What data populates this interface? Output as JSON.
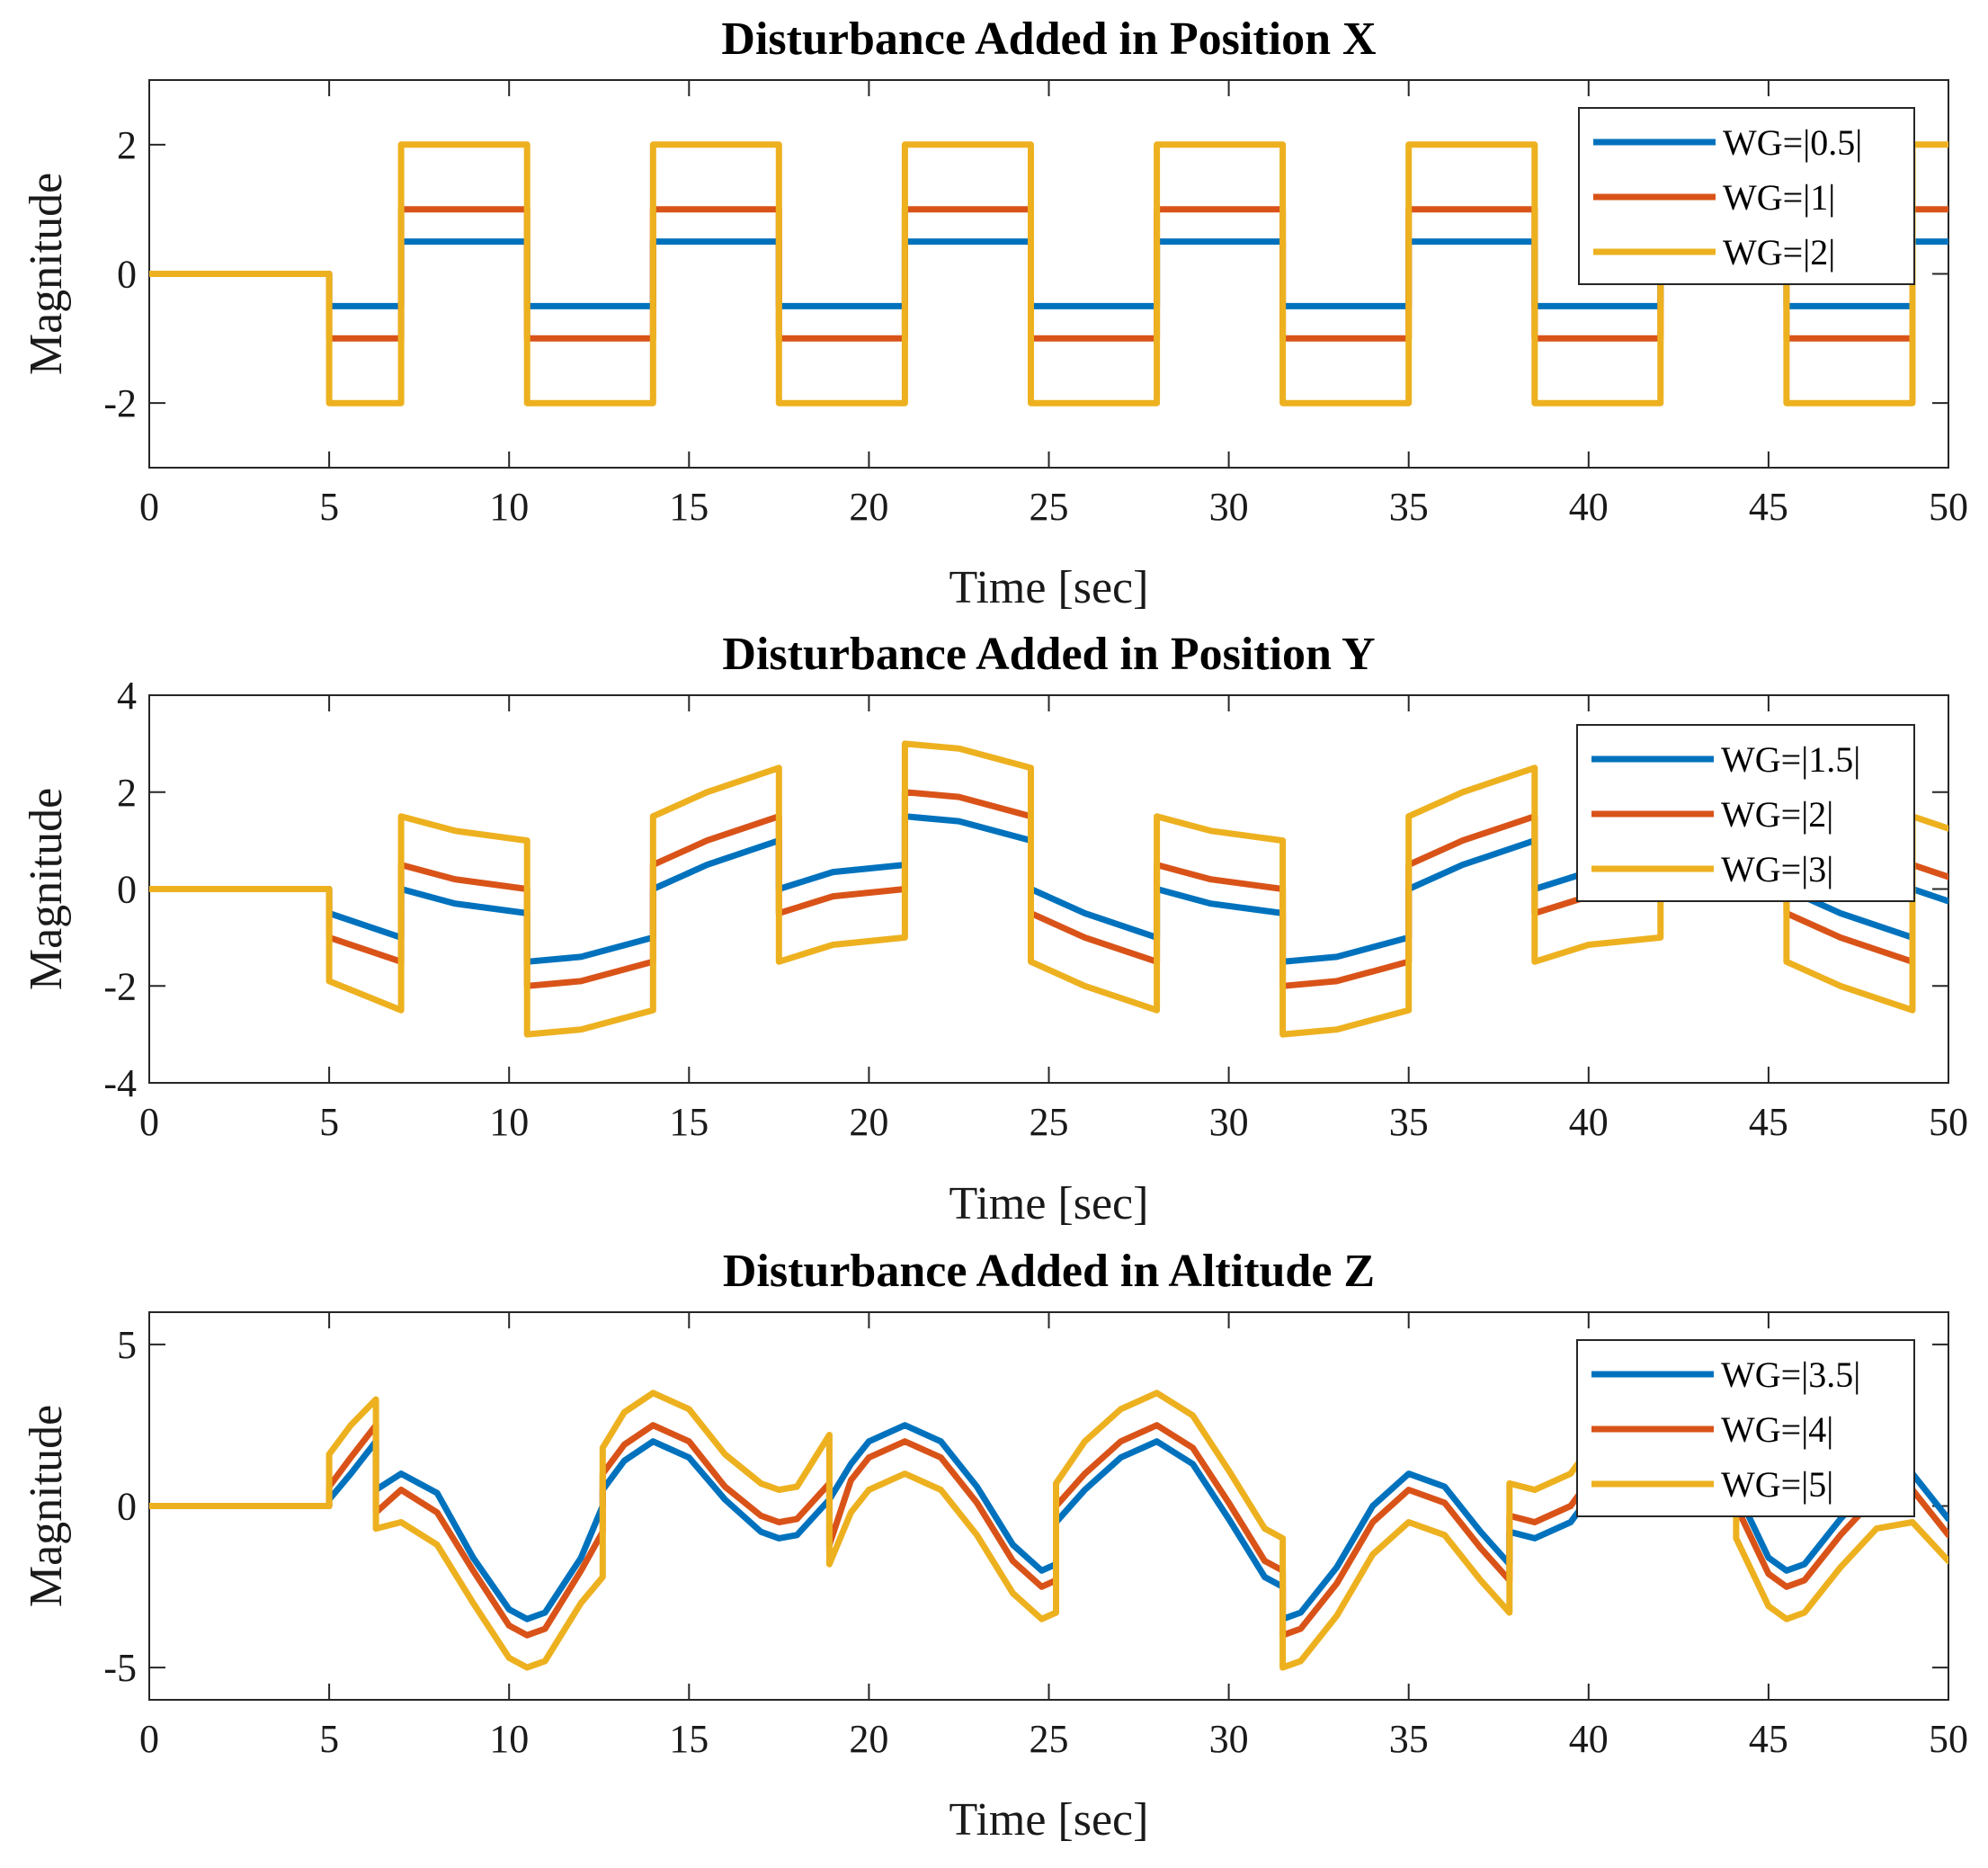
{
  "colors": {
    "s1": "#0072BD",
    "s2": "#D95319",
    "s3": "#EDB120"
  },
  "chart_data": [
    {
      "type": "line",
      "title": "Disturbance Added in Position X",
      "xlabel": "Time [sec]",
      "ylabel": "Magnitude",
      "xlim": [
        0,
        50
      ],
      "ylim": [
        -3,
        3
      ],
      "xticks": [
        0,
        5,
        10,
        15,
        20,
        25,
        30,
        35,
        40,
        45,
        50
      ],
      "xtick_labels": [
        "0",
        "5",
        "10",
        "15",
        "20",
        "25",
        "30",
        "35",
        "40",
        "45",
        "50"
      ],
      "yticks": [
        -2,
        0,
        2
      ],
      "ytick_labels": [
        "-2",
        "0",
        "2"
      ],
      "legend_position": "top-right",
      "series": [
        {
          "name": "WG=|0.5|",
          "color": "#0072BD",
          "x": [
            0,
            5,
            5,
            7,
            7,
            10.5,
            10.5,
            14,
            14,
            17.5,
            17.5,
            21,
            21,
            24.5,
            24.5,
            28,
            28,
            31.5,
            31.5,
            35,
            35,
            38.5,
            38.5,
            42,
            42,
            45.5,
            45.5,
            49,
            49,
            50
          ],
          "y": [
            0,
            0,
            -0.5,
            -0.5,
            0.5,
            0.5,
            -0.5,
            -0.5,
            0.5,
            0.5,
            -0.5,
            -0.5,
            0.5,
            0.5,
            -0.5,
            -0.5,
            0.5,
            0.5,
            -0.5,
            -0.5,
            0.5,
            0.5,
            -0.5,
            -0.5,
            0.5,
            0.5,
            -0.5,
            -0.5,
            0.5,
            0.5
          ]
        },
        {
          "name": "WG=|1|",
          "color": "#D95319",
          "x": [
            0,
            5,
            5,
            7,
            7,
            10.5,
            10.5,
            14,
            14,
            17.5,
            17.5,
            21,
            21,
            24.5,
            24.5,
            28,
            28,
            31.5,
            31.5,
            35,
            35,
            38.5,
            38.5,
            42,
            42,
            45.5,
            45.5,
            49,
            49,
            50
          ],
          "y": [
            0,
            0,
            -1,
            -1,
            1,
            1,
            -1,
            -1,
            1,
            1,
            -1,
            -1,
            1,
            1,
            -1,
            -1,
            1,
            1,
            -1,
            -1,
            1,
            1,
            -1,
            -1,
            1,
            1,
            -1,
            -1,
            1,
            1
          ]
        },
        {
          "name": "WG=|2|",
          "color": "#EDB120",
          "x": [
            0,
            5,
            5,
            7,
            7,
            10.5,
            10.5,
            14,
            14,
            17.5,
            17.5,
            21,
            21,
            24.5,
            24.5,
            28,
            28,
            31.5,
            31.5,
            35,
            35,
            38.5,
            38.5,
            42,
            42,
            45.5,
            45.5,
            49,
            49,
            50
          ],
          "y": [
            0,
            0,
            -2,
            -2,
            2,
            2,
            -2,
            -2,
            2,
            2,
            -2,
            -2,
            2,
            2,
            -2,
            -2,
            2,
            2,
            -2,
            -2,
            2,
            2,
            -2,
            -2,
            2,
            2,
            -2,
            -2,
            2,
            2
          ]
        }
      ]
    },
    {
      "type": "line",
      "title": "Disturbance Added in Position Y",
      "xlabel": "Time [sec]",
      "ylabel": "Magnitude",
      "xlim": [
        0,
        50
      ],
      "ylim": [
        -4,
        4
      ],
      "xticks": [
        0,
        5,
        10,
        15,
        20,
        25,
        30,
        35,
        40,
        45,
        50
      ],
      "xtick_labels": [
        "0",
        "5",
        "10",
        "15",
        "20",
        "25",
        "30",
        "35",
        "40",
        "45",
        "50"
      ],
      "yticks": [
        -4,
        -2,
        0,
        2,
        4
      ],
      "ytick_labels": [
        "-4",
        "-2",
        "0",
        "2",
        "4"
      ],
      "legend_position": "top-right",
      "series": [
        {
          "name": "WG=|1.5|",
          "color": "#0072BD",
          "x": [
            0,
            5,
            5,
            6,
            7,
            7,
            8.5,
            10.5,
            10.5,
            12,
            14,
            14,
            15.5,
            17.5,
            17.5,
            19,
            21,
            21,
            22.5,
            24.5,
            24.5,
            26,
            28,
            28,
            29.5,
            31.5,
            31.5,
            33,
            35,
            35,
            36.5,
            38.5,
            38.5,
            40,
            42,
            42,
            43.5,
            45.5,
            45.5,
            47,
            49,
            49,
            50
          ],
          "y": [
            0,
            0,
            -0.5,
            -0.75,
            -1.0,
            0.0,
            -0.3,
            -0.5,
            -1.5,
            -1.4,
            -1.0,
            0.0,
            0.5,
            1.0,
            0.0,
            0.35,
            0.5,
            1.5,
            1.4,
            1.0,
            0.0,
            -0.5,
            -1.0,
            0.0,
            -0.3,
            -0.5,
            -1.5,
            -1.4,
            -1.0,
            0.0,
            0.5,
            1.0,
            0.0,
            0.35,
            0.5,
            1.5,
            1.4,
            1.0,
            0.0,
            -0.5,
            -1.0,
            0.0,
            -0.25
          ]
        },
        {
          "name": "WG=|2|",
          "color": "#D95319",
          "x": [
            0,
            5,
            5,
            6,
            7,
            7,
            8.5,
            10.5,
            10.5,
            12,
            14,
            14,
            15.5,
            17.5,
            17.5,
            19,
            21,
            21,
            22.5,
            24.5,
            24.5,
            26,
            28,
            28,
            29.5,
            31.5,
            31.5,
            33,
            35,
            35,
            36.5,
            38.5,
            38.5,
            40,
            42,
            42,
            43.5,
            45.5,
            45.5,
            47,
            49,
            49,
            50
          ],
          "y": [
            0,
            0,
            -1.0,
            -1.25,
            -1.5,
            0.5,
            0.2,
            0.0,
            -2.0,
            -1.9,
            -1.5,
            0.5,
            1.0,
            1.5,
            -0.5,
            -0.15,
            0.0,
            2.0,
            1.9,
            1.5,
            -0.5,
            -1.0,
            -1.5,
            0.5,
            0.2,
            0.0,
            -2.0,
            -1.9,
            -1.5,
            0.5,
            1.0,
            1.5,
            -0.5,
            -0.15,
            0.0,
            2.0,
            1.9,
            1.5,
            -0.5,
            -1.0,
            -1.5,
            0.5,
            0.25
          ]
        },
        {
          "name": "WG=|3|",
          "color": "#EDB120",
          "x": [
            0,
            5,
            5,
            6,
            7,
            7,
            8.5,
            10.5,
            10.5,
            12,
            14,
            14,
            15.5,
            17.5,
            17.5,
            19,
            21,
            21,
            22.5,
            24.5,
            24.5,
            26,
            28,
            28,
            29.5,
            31.5,
            31.5,
            33,
            35,
            35,
            36.5,
            38.5,
            38.5,
            40,
            42,
            42,
            43.5,
            45.5,
            45.5,
            47,
            49,
            49,
            50
          ],
          "y": [
            0,
            0,
            -1.9,
            -2.2,
            -2.5,
            1.5,
            1.2,
            1.0,
            -3.0,
            -2.9,
            -2.5,
            1.5,
            2.0,
            2.5,
            -1.5,
            -1.15,
            -1.0,
            3.0,
            2.9,
            2.5,
            -1.5,
            -2.0,
            -2.5,
            1.5,
            1.2,
            1.0,
            -3.0,
            -2.9,
            -2.5,
            1.5,
            2.0,
            2.5,
            -1.5,
            -1.15,
            -1.0,
            3.0,
            2.9,
            2.5,
            -1.5,
            -2.0,
            -2.5,
            1.5,
            1.25
          ]
        }
      ]
    },
    {
      "type": "line",
      "title": "Disturbance Added in Altitude Z",
      "xlabel": "Time [sec]",
      "ylabel": "Magnitude",
      "xlim": [
        0,
        50
      ],
      "ylim": [
        -6,
        6
      ],
      "xticks": [
        0,
        5,
        10,
        15,
        20,
        25,
        30,
        35,
        40,
        45,
        50
      ],
      "xtick_labels": [
        "0",
        "5",
        "10",
        "15",
        "20",
        "25",
        "30",
        "35",
        "40",
        "45",
        "50"
      ],
      "yticks": [
        -5,
        0,
        5
      ],
      "ytick_labels": [
        "-5",
        "0",
        "5"
      ],
      "legend_position": "top-right",
      "series": [
        {
          "name": "WG=|3.5|",
          "color": "#0072BD",
          "x": [
            0,
            5,
            5,
            5.6,
            6.3,
            6.3,
            7,
            8,
            9,
            10,
            10.5,
            11,
            12,
            12.6,
            12.6,
            13.2,
            14,
            15,
            16,
            17,
            17.5,
            18,
            18.9,
            18.9,
            19.5,
            20,
            21,
            22,
            23,
            24,
            24.8,
            25.2,
            25.2,
            26,
            27,
            28,
            29,
            30,
            31,
            31.5,
            31.5,
            32,
            33,
            34,
            35,
            36,
            37,
            37.8,
            37.8,
            38.5,
            39.5,
            40.5,
            41.5,
            42.5,
            43.5,
            44.1,
            44.1,
            45,
            45.5,
            46,
            47,
            48,
            49,
            50
          ],
          "y": [
            0,
            0,
            0.2,
            1.0,
            2.0,
            0.5,
            1.0,
            0.4,
            -1.6,
            -3.2,
            -3.5,
            -3.3,
            -1.6,
            0.0,
            0.5,
            1.4,
            2.0,
            1.5,
            0.2,
            -0.8,
            -1.0,
            -0.9,
            0.2,
            0.2,
            1.3,
            2.0,
            2.5,
            2.0,
            0.6,
            -1.2,
            -2.0,
            -1.8,
            -0.5,
            0.5,
            1.5,
            2.0,
            1.3,
            -0.4,
            -2.2,
            -2.5,
            -3.5,
            -3.3,
            -1.9,
            0.0,
            1.0,
            0.6,
            -0.8,
            -1.8,
            -0.8,
            -1.0,
            -0.5,
            1.0,
            2.2,
            2.3,
            1.0,
            -0.3,
            0.5,
            -1.6,
            -2.0,
            -1.8,
            -0.4,
            0.8,
            1.0,
            -0.4
          ]
        },
        {
          "name": "WG=|4|",
          "color": "#D95319",
          "x": [
            0,
            5,
            5,
            5.6,
            6.3,
            6.3,
            7,
            8,
            9,
            10,
            10.5,
            11,
            12,
            12.6,
            12.6,
            13.2,
            14,
            15,
            16,
            17,
            17.5,
            18,
            18.9,
            18.9,
            19.5,
            20,
            21,
            22,
            23,
            24,
            24.8,
            25.2,
            25.2,
            26,
            27,
            28,
            29,
            30,
            31,
            31.5,
            31.5,
            32,
            33,
            34,
            35,
            36,
            37,
            37.8,
            37.8,
            38.5,
            39.5,
            40.5,
            41.5,
            42.5,
            43.5,
            44.1,
            44.1,
            45,
            45.5,
            46,
            47,
            48,
            49,
            50
          ],
          "y": [
            0,
            0,
            0.6,
            1.5,
            2.5,
            -0.2,
            0.5,
            -0.2,
            -2.0,
            -3.7,
            -4.0,
            -3.8,
            -2.0,
            -0.8,
            1.0,
            1.9,
            2.5,
            2.0,
            0.6,
            -0.3,
            -0.5,
            -0.4,
            0.7,
            -1.2,
            0.8,
            1.5,
            2.0,
            1.5,
            0.1,
            -1.7,
            -2.5,
            -2.3,
            0.0,
            1.0,
            2.0,
            2.5,
            1.8,
            0.1,
            -1.7,
            -2.0,
            -4.0,
            -3.8,
            -2.4,
            -0.5,
            0.5,
            0.1,
            -1.3,
            -2.3,
            -0.3,
            -0.5,
            0.0,
            1.5,
            2.7,
            2.8,
            1.5,
            0.2,
            0.0,
            -2.1,
            -2.5,
            -2.3,
            -0.9,
            0.3,
            0.5,
            -0.9
          ]
        },
        {
          "name": "WG=|5|",
          "color": "#EDB120",
          "x": [
            0,
            5,
            5,
            5.6,
            6.3,
            6.3,
            7,
            8,
            9,
            10,
            10.5,
            11,
            12,
            12.6,
            12.6,
            13.2,
            14,
            15,
            16,
            17,
            17.5,
            18,
            18.9,
            18.9,
            19.5,
            20,
            21,
            22,
            23,
            24,
            24.8,
            25.2,
            25.2,
            26,
            27,
            28,
            29,
            30,
            31,
            31.5,
            31.5,
            32,
            33,
            34,
            35,
            36,
            37,
            37.8,
            37.8,
            38.5,
            39.5,
            40.5,
            41.5,
            42.5,
            43.5,
            44.1,
            44.1,
            45,
            45.5,
            46,
            47,
            48,
            49,
            50
          ],
          "y": [
            0,
            0,
            1.6,
            2.5,
            3.3,
            -0.7,
            -0.5,
            -1.2,
            -3.0,
            -4.7,
            -5.0,
            -4.8,
            -3.0,
            -2.2,
            1.8,
            2.9,
            3.5,
            3.0,
            1.6,
            0.7,
            0.5,
            0.6,
            2.2,
            -1.8,
            -0.2,
            0.5,
            1.0,
            0.5,
            -0.9,
            -2.7,
            -3.5,
            -3.3,
            0.7,
            2.0,
            3.0,
            3.5,
            2.8,
            1.1,
            -0.7,
            -1.0,
            -5.0,
            -4.8,
            -3.4,
            -1.5,
            -0.5,
            -0.9,
            -2.3,
            -3.3,
            0.7,
            0.5,
            1.0,
            2.5,
            3.7,
            3.8,
            2.5,
            1.2,
            -1.0,
            -3.1,
            -3.5,
            -3.3,
            -1.9,
            -0.7,
            -0.5,
            -1.7
          ]
        }
      ]
    }
  ]
}
